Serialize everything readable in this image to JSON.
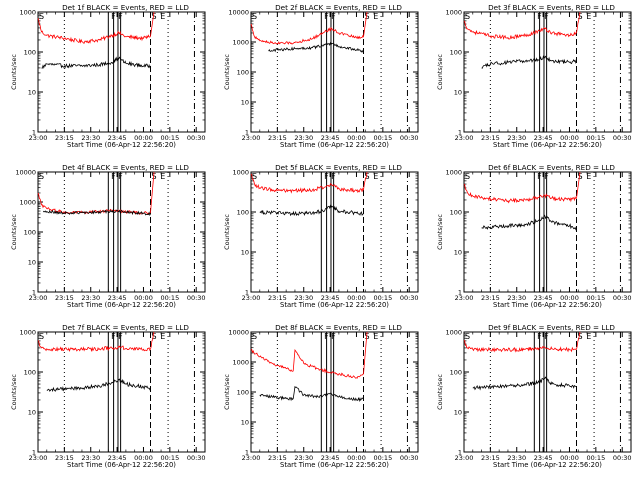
{
  "chart_data": [
    {
      "type": "line",
      "title": "Det 1f BLACK = Events, RED = LLD",
      "xlabel": "Start Time (06-Apr-12 22:56:20)",
      "ylabel": "Counts/sec",
      "yscale": "log",
      "ylim": [
        1,
        1000
      ],
      "xlim": [
        "23:00",
        "00:35"
      ],
      "x_tick_labels": [
        "23:00",
        "23:15",
        "23:30",
        "23:45",
        "00:00",
        "00:15",
        "00:30"
      ],
      "y_tick_labels": [
        "1",
        "10",
        "100",
        "1000"
      ],
      "markers": [
        "S",
        "F",
        "F",
        "S",
        "E"
      ],
      "series": [
        {
          "color": "#ff0000",
          "x": [
            "23:00",
            "23:02",
            "23:05",
            "23:15",
            "23:25",
            "23:35",
            "23:42",
            "23:46",
            "23:50",
            "00:00",
            "00:04",
            "00:06"
          ],
          "values": [
            700,
            320,
            260,
            220,
            180,
            200,
            260,
            300,
            240,
            220,
            250,
            1000
          ]
        },
        {
          "color": "#000000",
          "x": [
            "23:02",
            "23:05",
            "23:15",
            "23:25",
            "23:35",
            "23:42",
            "23:46",
            "23:50",
            "00:00",
            "00:04"
          ],
          "values": [
            40,
            50,
            45,
            45,
            48,
            55,
            70,
            52,
            45,
            45
          ]
        }
      ]
    },
    {
      "type": "line",
      "title": "Det 2f BLACK = Events, RED = LLD",
      "xlabel": "Start Time (06-Apr-12 22:56:20)",
      "ylabel": "Counts/sec",
      "yscale": "log",
      "ylim": [
        1,
        10000
      ],
      "xlim": [
        "23:00",
        "00:35"
      ],
      "x_tick_labels": [
        "23:00",
        "23:15",
        "23:30",
        "23:45",
        "00:00",
        "00:15",
        "00:30"
      ],
      "y_tick_labels": [
        "1",
        "10",
        "100",
        "1000",
        "10000"
      ],
      "markers": [
        "S",
        "F",
        "F",
        "S",
        "E"
      ],
      "series": [
        {
          "color": "#ff0000",
          "x": [
            "23:00",
            "23:02",
            "23:05",
            "23:15",
            "23:25",
            "23:35",
            "23:42",
            "23:46",
            "23:50",
            "00:00",
            "00:04",
            "00:06"
          ],
          "values": [
            4000,
            1500,
            1100,
            900,
            950,
            1300,
            2200,
            2800,
            2000,
            1400,
            1500,
            10000
          ]
        },
        {
          "color": "#000000",
          "x": [
            "23:10",
            "23:15",
            "23:25",
            "23:35",
            "23:42",
            "23:46",
            "23:50",
            "00:00",
            "00:04"
          ],
          "values": [
            500,
            550,
            600,
            650,
            800,
            900,
            700,
            550,
            500
          ]
        }
      ]
    },
    {
      "type": "line",
      "title": "Det 3f BLACK = Events, RED = LLD",
      "xlabel": "Start Time (06-Apr-12 22:56:20)",
      "ylabel": "Counts/sec",
      "yscale": "log",
      "ylim": [
        1,
        1000
      ],
      "xlim": [
        "23:00",
        "00:35"
      ],
      "x_tick_labels": [
        "23:00",
        "23:15",
        "23:30",
        "23:45",
        "00:00",
        "00:15",
        "00:30"
      ],
      "y_tick_labels": [
        "1",
        "10",
        "100",
        "1000"
      ],
      "markers": [
        "S",
        "F",
        "F",
        "S",
        "E"
      ],
      "series": [
        {
          "color": "#ff0000",
          "x": [
            "23:00",
            "23:02",
            "23:05",
            "23:15",
            "23:25",
            "23:35",
            "23:42",
            "23:46",
            "23:50",
            "00:00",
            "00:04",
            "00:06"
          ],
          "values": [
            600,
            380,
            320,
            250,
            230,
            260,
            330,
            380,
            300,
            260,
            300,
            1000
          ]
        },
        {
          "color": "#000000",
          "x": [
            "23:10",
            "23:15",
            "23:25",
            "23:35",
            "23:42",
            "23:46",
            "23:50",
            "00:00",
            "00:04"
          ],
          "values": [
            40,
            50,
            55,
            60,
            65,
            75,
            60,
            55,
            60
          ]
        }
      ]
    },
    {
      "type": "line",
      "title": "Det 4f BLACK = Events, RED = LLD",
      "xlabel": "Start Time (06-Apr-12 22:56:20)",
      "ylabel": "Counts/sec",
      "yscale": "log",
      "ylim": [
        1,
        10000
      ],
      "xlim": [
        "23:00",
        "00:35"
      ],
      "x_tick_labels": [
        "23:00",
        "23:15",
        "23:30",
        "23:45",
        "00:00",
        "00:15",
        "00:30"
      ],
      "y_tick_labels": [
        "1",
        "10",
        "100",
        "1000",
        "10000"
      ],
      "markers": [
        "S",
        "F",
        "F",
        "S",
        "E"
      ],
      "series": [
        {
          "color": "#ff0000",
          "x": [
            "23:00",
            "23:02",
            "23:05",
            "23:15",
            "23:25",
            "23:35",
            "23:42",
            "23:46",
            "23:50",
            "00:00",
            "00:04",
            "00:06"
          ],
          "values": [
            2000,
            800,
            600,
            450,
            450,
            480,
            520,
            500,
            470,
            420,
            450,
            10000
          ]
        },
        {
          "color": "#000000",
          "x": [
            "23:03",
            "23:05",
            "23:15",
            "23:25",
            "23:35",
            "23:42",
            "23:46",
            "23:50",
            "00:00",
            "00:04"
          ],
          "values": [
            500,
            480,
            430,
            440,
            460,
            500,
            480,
            460,
            420,
            400
          ]
        }
      ]
    },
    {
      "type": "line",
      "title": "Det 5f BLACK = Events, RED = LLD",
      "xlabel": "Start Time (06-Apr-12 22:56:20)",
      "ylabel": "Counts/sec",
      "yscale": "log",
      "ylim": [
        1,
        1000
      ],
      "xlim": [
        "23:00",
        "00:35"
      ],
      "x_tick_labels": [
        "23:00",
        "23:15",
        "23:30",
        "23:45",
        "00:00",
        "00:15",
        "00:30"
      ],
      "y_tick_labels": [
        "1",
        "10",
        "100",
        "1000"
      ],
      "markers": [
        "S",
        "F",
        "F",
        "S",
        "E"
      ],
      "series": [
        {
          "color": "#ff0000",
          "x": [
            "23:00",
            "23:02",
            "23:05",
            "23:15",
            "23:25",
            "23:35",
            "23:42",
            "23:46",
            "23:50",
            "00:00",
            "00:04",
            "00:06"
          ],
          "values": [
            900,
            500,
            400,
            350,
            340,
            360,
            420,
            480,
            380,
            340,
            360,
            1000
          ]
        },
        {
          "color": "#000000",
          "x": [
            "23:05",
            "23:15",
            "23:25",
            "23:35",
            "23:42",
            "23:46",
            "23:50",
            "00:00",
            "00:04"
          ],
          "values": [
            100,
            95,
            90,
            95,
            110,
            140,
            105,
            95,
            90
          ]
        }
      ]
    },
    {
      "type": "line",
      "title": "Det 6f BLACK = Events, RED = LLD",
      "xlabel": "Start Time (06-Apr-12 22:56:20)",
      "ylabel": "Counts/sec",
      "yscale": "log",
      "ylim": [
        1,
        1000
      ],
      "xlim": [
        "23:00",
        "00:35"
      ],
      "x_tick_labels": [
        "23:00",
        "23:15",
        "23:30",
        "23:45",
        "00:00",
        "00:15",
        "00:30"
      ],
      "y_tick_labels": [
        "1",
        "10",
        "100",
        "1000"
      ],
      "markers": [
        "S",
        "F",
        "F",
        "S",
        "E"
      ],
      "series": [
        {
          "color": "#ff0000",
          "x": [
            "23:00",
            "23:02",
            "23:05",
            "23:15",
            "23:25",
            "23:35",
            "23:42",
            "23:46",
            "23:50",
            "00:00",
            "00:04",
            "00:06"
          ],
          "values": [
            500,
            300,
            250,
            210,
            190,
            200,
            230,
            260,
            220,
            200,
            220,
            1000
          ]
        },
        {
          "color": "#000000",
          "x": [
            "23:10",
            "23:15",
            "23:25",
            "23:35",
            "23:42",
            "23:46",
            "23:50",
            "00:00",
            "00:04"
          ],
          "values": [
            40,
            42,
            45,
            48,
            60,
            80,
            55,
            45,
            40
          ]
        }
      ]
    },
    {
      "type": "line",
      "title": "Det 7f BLACK = Events, RED = LLD",
      "xlabel": "Start Time (06-Apr-12 22:56:20)",
      "ylabel": "Counts/sec",
      "yscale": "log",
      "ylim": [
        1,
        1000
      ],
      "xlim": [
        "23:00",
        "00:35"
      ],
      "x_tick_labels": [
        "23:00",
        "23:15",
        "23:30",
        "23:45",
        "00:00",
        "00:15",
        "00:30"
      ],
      "y_tick_labels": [
        "1",
        "10",
        "100",
        "1000"
      ],
      "markers": [
        "S",
        "F",
        "F",
        "S",
        "E"
      ],
      "series": [
        {
          "color": "#ff0000",
          "x": [
            "23:00",
            "23:02",
            "23:05",
            "23:15",
            "23:25",
            "23:35",
            "23:42",
            "23:46",
            "23:50",
            "00:00",
            "00:04",
            "00:06"
          ],
          "values": [
            600,
            400,
            380,
            370,
            370,
            380,
            400,
            420,
            390,
            370,
            380,
            1000
          ]
        },
        {
          "color": "#000000",
          "x": [
            "23:05",
            "23:15",
            "23:25",
            "23:35",
            "23:42",
            "23:46",
            "23:50",
            "00:00",
            "00:04"
          ],
          "values": [
            35,
            38,
            40,
            45,
            55,
            65,
            50,
            42,
            40
          ]
        }
      ]
    },
    {
      "type": "line",
      "title": "Det 8f BLACK = Events, RED = LLD",
      "xlabel": "Start Time (06-Apr-12 22:56:20)",
      "ylabel": "Counts/sec",
      "yscale": "log",
      "ylim": [
        1,
        10000
      ],
      "xlim": [
        "23:00",
        "00:35"
      ],
      "x_tick_labels": [
        "23:00",
        "23:15",
        "23:30",
        "23:45",
        "00:00",
        "00:15",
        "00:30"
      ],
      "y_tick_labels": [
        "1",
        "10",
        "100",
        "1000",
        "10000"
      ],
      "markers": [
        "S",
        "F",
        "F",
        "S",
        "E"
      ],
      "series": [
        {
          "color": "#ff0000",
          "x": [
            "23:00",
            "23:05",
            "23:12",
            "23:20",
            "23:24",
            "23:25",
            "23:30",
            "23:38",
            "23:45",
            "23:50",
            "00:00",
            "00:04",
            "00:06"
          ],
          "values": [
            2500,
            1500,
            900,
            600,
            500,
            2500,
            900,
            600,
            450,
            400,
            300,
            400,
            10000
          ]
        },
        {
          "color": "#000000",
          "x": [
            "23:05",
            "23:12",
            "23:20",
            "23:24",
            "23:25",
            "23:30",
            "23:38",
            "23:45",
            "23:50",
            "00:00",
            "00:04"
          ],
          "values": [
            80,
            70,
            60,
            60,
            150,
            80,
            70,
            90,
            70,
            55,
            60
          ]
        }
      ]
    },
    {
      "type": "line",
      "title": "Det 9f BLACK = Events, RED = LLD",
      "xlabel": "Start Time (06-Apr-12 22:56:20)",
      "ylabel": "Counts/sec",
      "yscale": "log",
      "ylim": [
        1,
        1000
      ],
      "xlim": [
        "23:00",
        "00:35"
      ],
      "x_tick_labels": [
        "23:00",
        "23:15",
        "23:30",
        "23:45",
        "00:00",
        "00:15",
        "00:30"
      ],
      "y_tick_labels": [
        "1",
        "10",
        "100",
        "1000"
      ],
      "markers": [
        "S",
        "F",
        "F",
        "S",
        "E"
      ],
      "series": [
        {
          "color": "#ff0000",
          "x": [
            "23:00",
            "23:02",
            "23:05",
            "23:15",
            "23:25",
            "23:35",
            "23:42",
            "23:46",
            "23:50",
            "00:00",
            "00:04",
            "00:06"
          ],
          "values": [
            600,
            400,
            370,
            360,
            360,
            370,
            400,
            420,
            380,
            360,
            370,
            1000
          ]
        },
        {
          "color": "#000000",
          "x": [
            "23:05",
            "23:15",
            "23:25",
            "23:35",
            "23:42",
            "23:46",
            "23:50",
            "00:00",
            "00:04"
          ],
          "values": [
            40,
            42,
            45,
            48,
            55,
            70,
            50,
            45,
            42
          ]
        }
      ]
    }
  ]
}
